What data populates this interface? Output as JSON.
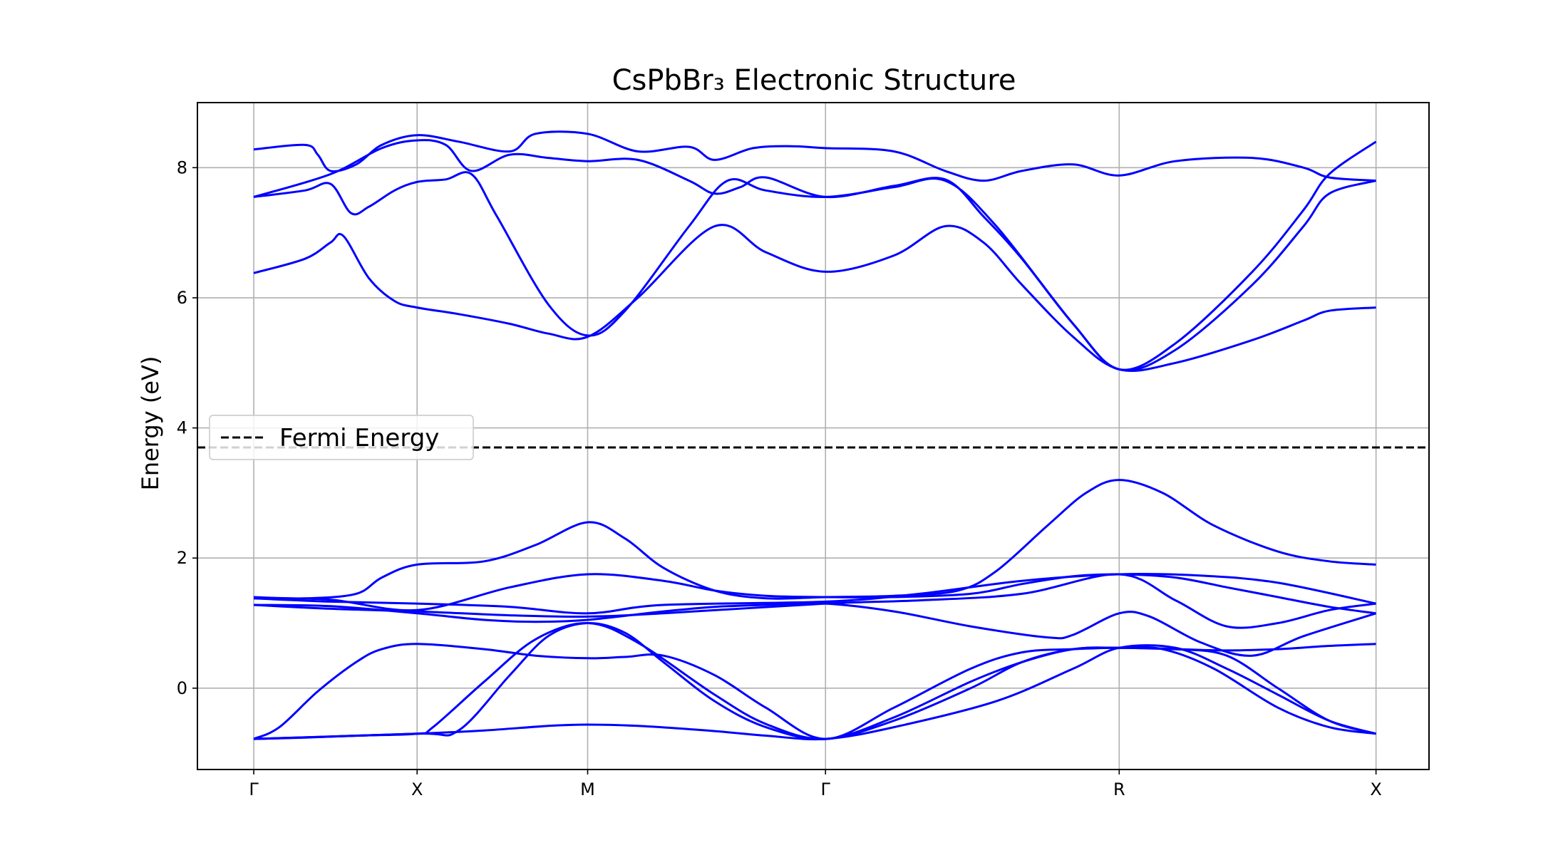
{
  "chart_data": {
    "type": "line",
    "title": "CsPbBr₃ Electronic Structure",
    "xlabel": "",
    "ylabel": "Energy (eV)",
    "xlim": [
      -0.22,
      4.59
    ],
    "ylim": [
      -1.25,
      9.0
    ],
    "x_ticks": [
      {
        "pos": 0,
        "label": "Γ"
      },
      {
        "pos": 0.638,
        "label": "X"
      },
      {
        "pos": 1.304,
        "label": "M"
      },
      {
        "pos": 2.233,
        "label": "Γ"
      },
      {
        "pos": 3.38,
        "label": "R"
      },
      {
        "pos": 4.383,
        "label": "X"
      }
    ],
    "y_ticks": [
      0,
      2,
      4,
      6,
      8
    ],
    "grid": true,
    "legend": {
      "position": "center-left",
      "entries": [
        "Fermi Energy"
      ]
    },
    "fermi_level": 3.7,
    "colors": {
      "bands": "#0000ff",
      "fermi": "#000000",
      "grid": "#b0b0b0"
    },
    "series": [
      {
        "x": [
          0,
          0.2,
          0.4,
          0.638,
          0.9,
          1.15,
          1.304,
          1.5,
          1.8,
          2.0,
          2.233,
          2.5,
          2.9,
          3.2,
          3.38,
          3.6,
          3.8,
          4.0,
          4.2,
          4.383
        ],
        "y": [
          -0.78,
          -0.76,
          -0.73,
          -0.7,
          -0.65,
          -0.58,
          -0.56,
          -0.58,
          -0.66,
          -0.73,
          -0.78,
          -0.6,
          -0.2,
          0.3,
          0.62,
          0.62,
          0.3,
          -0.1,
          -0.5,
          -0.7
        ]
      },
      {
        "x": [
          0,
          0.1,
          0.25,
          0.4,
          0.5,
          0.638,
          0.9,
          1.1,
          1.304,
          1.45,
          1.6,
          1.8,
          2.0,
          2.233,
          2.5,
          2.8,
          3.0,
          3.2,
          3.38,
          3.55,
          3.75,
          4.0,
          4.2,
          4.383
        ],
        "y": [
          -0.78,
          -0.6,
          -0.05,
          0.4,
          0.6,
          0.68,
          0.6,
          0.5,
          0.46,
          0.48,
          0.5,
          0.2,
          -0.3,
          -0.78,
          -0.3,
          0.3,
          0.55,
          0.6,
          0.62,
          0.6,
          0.3,
          -0.3,
          -0.6,
          -0.7
        ]
      },
      {
        "x": [
          0,
          0.4,
          0.638,
          0.7,
          0.9,
          1.1,
          1.304,
          1.5,
          1.8,
          2.0,
          2.233,
          2.5,
          2.8,
          3.0,
          3.2,
          3.38,
          3.6,
          3.8,
          4.0,
          4.2,
          4.383
        ],
        "y": [
          -0.78,
          -0.73,
          -0.7,
          -0.6,
          0.1,
          0.75,
          1.0,
          0.7,
          -0.1,
          -0.55,
          -0.78,
          -0.45,
          0.1,
          0.4,
          0.6,
          0.62,
          0.6,
          0.58,
          0.6,
          0.65,
          0.68
        ]
      },
      {
        "x": [
          0,
          0.638,
          0.8,
          1.0,
          1.15,
          1.304,
          1.45,
          1.6,
          1.8,
          2.0,
          2.233,
          2.5,
          2.8,
          3.0,
          3.2,
          3.38,
          3.6,
          3.8,
          4.0,
          4.2,
          4.383
        ],
        "y": [
          -0.78,
          -0.7,
          -0.65,
          0.2,
          0.8,
          1.0,
          0.85,
          0.4,
          -0.2,
          -0.6,
          -0.78,
          -0.5,
          0.0,
          0.4,
          0.6,
          0.62,
          0.6,
          0.5,
          0.0,
          -0.5,
          -0.7
        ]
      },
      {
        "x": [
          0,
          0.3,
          0.638,
          0.9,
          1.1,
          1.304,
          1.6,
          1.8,
          2.0,
          2.233,
          2.5,
          2.8,
          3.1,
          3.2,
          3.38,
          3.5,
          3.7,
          3.9,
          4.1,
          4.383
        ],
        "y": [
          1.28,
          1.26,
          1.15,
          1.05,
          1.02,
          1.05,
          1.18,
          1.25,
          1.28,
          1.3,
          1.18,
          0.95,
          0.78,
          0.82,
          1.15,
          1.1,
          0.7,
          0.5,
          0.8,
          1.15
        ]
      },
      {
        "x": [
          0,
          0.3,
          0.638,
          1.0,
          1.304,
          1.6,
          2.233,
          2.6,
          3.0,
          3.38,
          3.7,
          4.0,
          4.383
        ],
        "y": [
          1.38,
          1.33,
          1.3,
          1.25,
          1.15,
          1.28,
          1.33,
          1.45,
          1.65,
          1.75,
          1.73,
          1.62,
          1.3
        ]
      },
      {
        "x": [
          0,
          0.3,
          0.638,
          1.0,
          1.304,
          1.6,
          2.233,
          2.6,
          3.0,
          3.38,
          3.6,
          3.8,
          4.0,
          4.2,
          4.383
        ],
        "y": [
          1.28,
          1.22,
          1.18,
          1.12,
          1.1,
          1.15,
          1.3,
          1.35,
          1.45,
          1.75,
          1.35,
          0.95,
          1.0,
          1.2,
          1.3
        ]
      },
      {
        "x": [
          0,
          0.3,
          0.638,
          1.0,
          1.304,
          1.6,
          1.8,
          2.0,
          2.233,
          2.5,
          2.8,
          3.0,
          3.2,
          3.38,
          3.6,
          3.8,
          4.0,
          4.2,
          4.383
        ],
        "y": [
          1.38,
          1.36,
          1.2,
          1.55,
          1.75,
          1.65,
          1.5,
          1.42,
          1.4,
          1.4,
          1.45,
          1.6,
          1.72,
          1.75,
          1.7,
          1.55,
          1.4,
          1.25,
          1.15
        ]
      },
      {
        "x": [
          0,
          0.2,
          0.4,
          0.5,
          0.638,
          0.9,
          1.1,
          1.304,
          1.45,
          1.6,
          1.8,
          2.0,
          2.233,
          2.5,
          2.75,
          2.9,
          3.1,
          3.25,
          3.38,
          3.55,
          3.75,
          4.0,
          4.2,
          4.383
        ],
        "y": [
          1.4,
          1.38,
          1.45,
          1.7,
          1.9,
          1.95,
          2.2,
          2.55,
          2.3,
          1.85,
          1.5,
          1.38,
          1.4,
          1.42,
          1.5,
          1.8,
          2.5,
          3.0,
          3.2,
          3.0,
          2.5,
          2.1,
          1.95,
          1.9
        ]
      },
      {
        "x": [
          0,
          0.2,
          0.3,
          0.35,
          0.45,
          0.55,
          0.638,
          0.8,
          1.0,
          1.15,
          1.304,
          1.5,
          1.8,
          2.0,
          2.233,
          2.5,
          2.7,
          2.85,
          3.0,
          3.2,
          3.38,
          3.6,
          3.9,
          4.1,
          4.2,
          4.383
        ],
        "y": [
          6.38,
          6.6,
          6.85,
          6.95,
          6.3,
          5.95,
          5.85,
          5.75,
          5.6,
          5.45,
          5.4,
          6.0,
          7.1,
          6.7,
          6.4,
          6.65,
          7.1,
          6.85,
          6.2,
          5.4,
          4.9,
          5.0,
          5.35,
          5.65,
          5.8,
          5.85
        ]
      },
      {
        "x": [
          0,
          0.2,
          0.3,
          0.38,
          0.45,
          0.55,
          0.638,
          0.75,
          0.85,
          0.95,
          1.15,
          1.304,
          1.45,
          1.7,
          1.85,
          2.0,
          2.233,
          2.5,
          2.7,
          2.9,
          3.2,
          3.38,
          3.6,
          3.9,
          4.1,
          4.2,
          4.383
        ],
        "y": [
          7.55,
          7.65,
          7.75,
          7.3,
          7.4,
          7.65,
          7.78,
          7.82,
          7.9,
          7.25,
          5.9,
          5.42,
          5.8,
          7.1,
          7.8,
          7.65,
          7.55,
          7.7,
          7.8,
          7.1,
          5.6,
          4.9,
          5.2,
          6.2,
          7.1,
          7.6,
          7.8
        ]
      },
      {
        "x": [
          0,
          0.3,
          0.5,
          0.638,
          0.75,
          0.85,
          1.0,
          1.15,
          1.304,
          1.5,
          1.7,
          1.8,
          1.9,
          2.0,
          2.233,
          2.5,
          2.7,
          2.85,
          3.0,
          3.2,
          3.38,
          3.6,
          3.9,
          4.1,
          4.2,
          4.383
        ],
        "y": [
          7.55,
          7.9,
          8.3,
          8.42,
          8.35,
          7.95,
          8.2,
          8.15,
          8.1,
          8.12,
          7.8,
          7.6,
          7.7,
          7.85,
          7.55,
          7.72,
          7.82,
          7.25,
          6.6,
          5.6,
          4.9,
          5.3,
          6.4,
          7.35,
          7.9,
          8.4
        ]
      },
      {
        "x": [
          0,
          0.2,
          0.25,
          0.3,
          0.4,
          0.5,
          0.638,
          0.8,
          1.0,
          1.1,
          1.304,
          1.5,
          1.7,
          1.8,
          1.95,
          2.1,
          2.233,
          2.5,
          2.7,
          2.85,
          3.0,
          3.2,
          3.38,
          3.6,
          3.9,
          4.1,
          4.2,
          4.383
        ],
        "y": [
          8.28,
          8.35,
          8.2,
          7.95,
          8.05,
          8.35,
          8.5,
          8.4,
          8.25,
          8.52,
          8.52,
          8.25,
          8.32,
          8.12,
          8.3,
          8.33,
          8.3,
          8.25,
          7.95,
          7.8,
          7.95,
          8.05,
          7.88,
          8.1,
          8.15,
          8.0,
          7.85,
          7.8
        ]
      }
    ]
  }
}
